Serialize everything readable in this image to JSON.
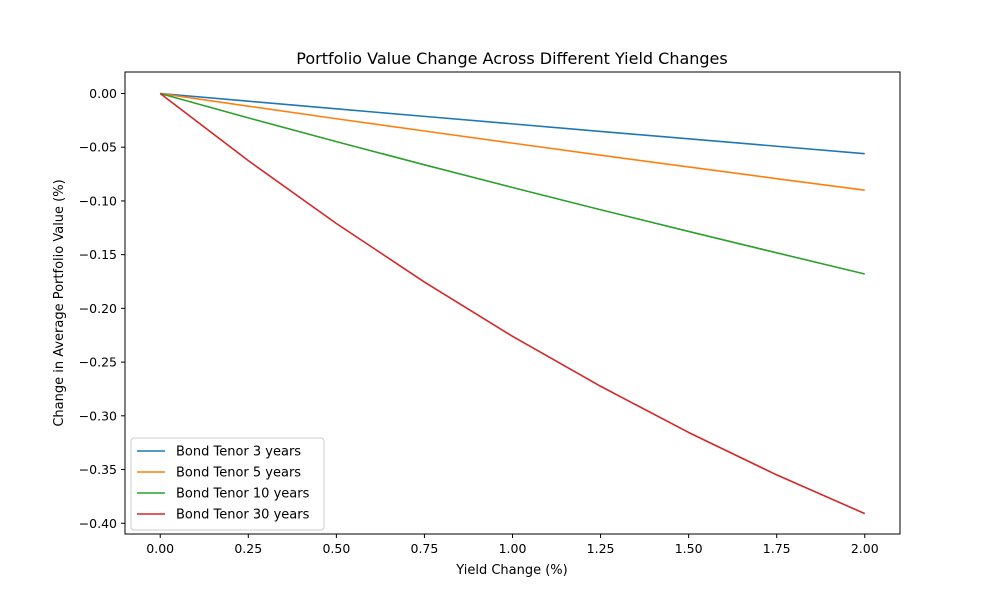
{
  "chart_data": {
    "type": "line",
    "title": "Portfolio Value Change Across Different Yield Changes",
    "xlabel": "Yield Change (%)",
    "ylabel": "Change in Average Portfolio Value (%)",
    "xlim": [
      -0.1,
      2.1
    ],
    "ylim": [
      -0.41,
      0.02
    ],
    "x_ticks": [
      0.0,
      0.25,
      0.5,
      0.75,
      1.0,
      1.25,
      1.5,
      1.75,
      2.0
    ],
    "x_tick_labels": [
      "0.00",
      "0.25",
      "0.50",
      "0.75",
      "1.00",
      "1.25",
      "1.50",
      "1.75",
      "2.00"
    ],
    "y_ticks": [
      0.0,
      -0.05,
      -0.1,
      -0.15,
      -0.2,
      -0.25,
      -0.3,
      -0.35,
      -0.4
    ],
    "y_tick_labels": [
      "0.00",
      "−0.05",
      "−0.10",
      "−0.15",
      "−0.20",
      "−0.25",
      "−0.30",
      "−0.35",
      "−0.40"
    ],
    "grid": false,
    "legend_position": "lower-left",
    "x": [
      0.0,
      0.25,
      0.5,
      0.75,
      1.0,
      1.25,
      1.5,
      1.75,
      2.0
    ],
    "series": [
      {
        "name": "Bond Tenor 3 years",
        "color": "#1f77b4",
        "values": [
          0.0,
          -0.0072,
          -0.0143,
          -0.0213,
          -0.0283,
          -0.0353,
          -0.0422,
          -0.0491,
          -0.056
        ]
      },
      {
        "name": "Bond Tenor 5 years",
        "color": "#ff7f0e",
        "values": [
          0.0,
          -0.0118,
          -0.0235,
          -0.0349,
          -0.0462,
          -0.0574,
          -0.0684,
          -0.0793,
          -0.09
        ]
      },
      {
        "name": "Bond Tenor 10 years",
        "color": "#2ca02c",
        "values": [
          0.0,
          -0.0227,
          -0.0448,
          -0.0664,
          -0.0875,
          -0.1082,
          -0.1284,
          -0.1483,
          -0.168
        ]
      },
      {
        "name": "Bond Tenor 30 years",
        "color": "#d62728",
        "values": [
          0.0,
          -0.0625,
          -0.121,
          -0.1755,
          -0.226,
          -0.2725,
          -0.3155,
          -0.355,
          -0.391
        ]
      }
    ]
  }
}
